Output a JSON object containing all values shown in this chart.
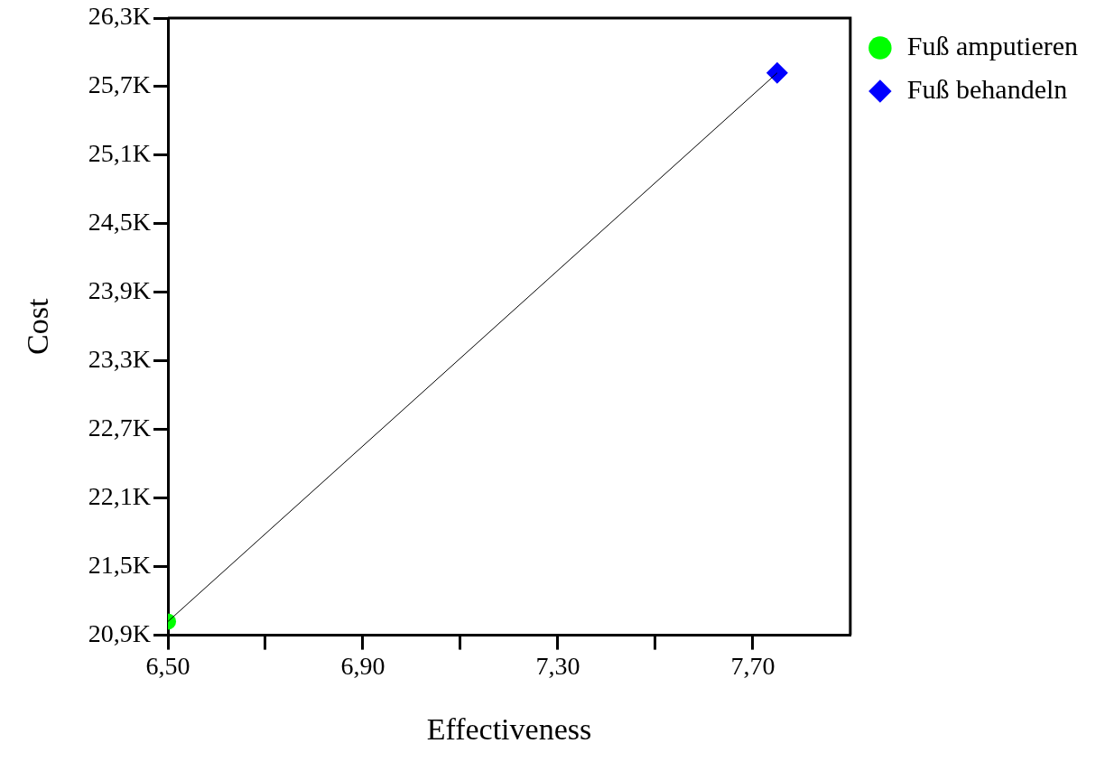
{
  "chart_data": {
    "type": "scatter",
    "xlabel": "Effectiveness",
    "ylabel": "Cost",
    "xlim": [
      6.5,
      7.9
    ],
    "ylim": [
      20.9,
      26.3
    ],
    "xticks": [
      {
        "value": 6.5,
        "label": "6,50"
      },
      {
        "value": 6.7,
        "label": null
      },
      {
        "value": 6.9,
        "label": "6,90"
      },
      {
        "value": 7.1,
        "label": null
      },
      {
        "value": 7.3,
        "label": "7,30"
      },
      {
        "value": 7.5,
        "label": null
      },
      {
        "value": 7.7,
        "label": "7,70"
      }
    ],
    "yticks": [
      {
        "value": 20.9,
        "label": "20,9K"
      },
      {
        "value": 21.5,
        "label": "21,5K"
      },
      {
        "value": 22.1,
        "label": "22,1K"
      },
      {
        "value": 22.7,
        "label": "22,7K"
      },
      {
        "value": 23.3,
        "label": "23,3K"
      },
      {
        "value": 23.9,
        "label": "23,9K"
      },
      {
        "value": 24.5,
        "label": "24,5K"
      },
      {
        "value": 25.1,
        "label": "25,1K"
      },
      {
        "value": 25.7,
        "label": "25,7K"
      },
      {
        "value": 26.3,
        "label": "26,3K"
      }
    ],
    "grid": false,
    "legend": "top right",
    "x": [
      6.5,
      7.75
    ],
    "series": [
      {
        "type": "line",
        "color": "#000000",
        "values": [
          21.02,
          25.82
        ],
        "marker": "none"
      },
      {
        "name": "Fuß amputieren",
        "color": "#00ff00",
        "values": [
          21.02,
          null
        ],
        "marker": "circle"
      },
      {
        "name": "Fuß behandeln",
        "color": "#0000ff",
        "values": [
          null,
          25.82
        ],
        "marker": "diamond"
      }
    ]
  }
}
